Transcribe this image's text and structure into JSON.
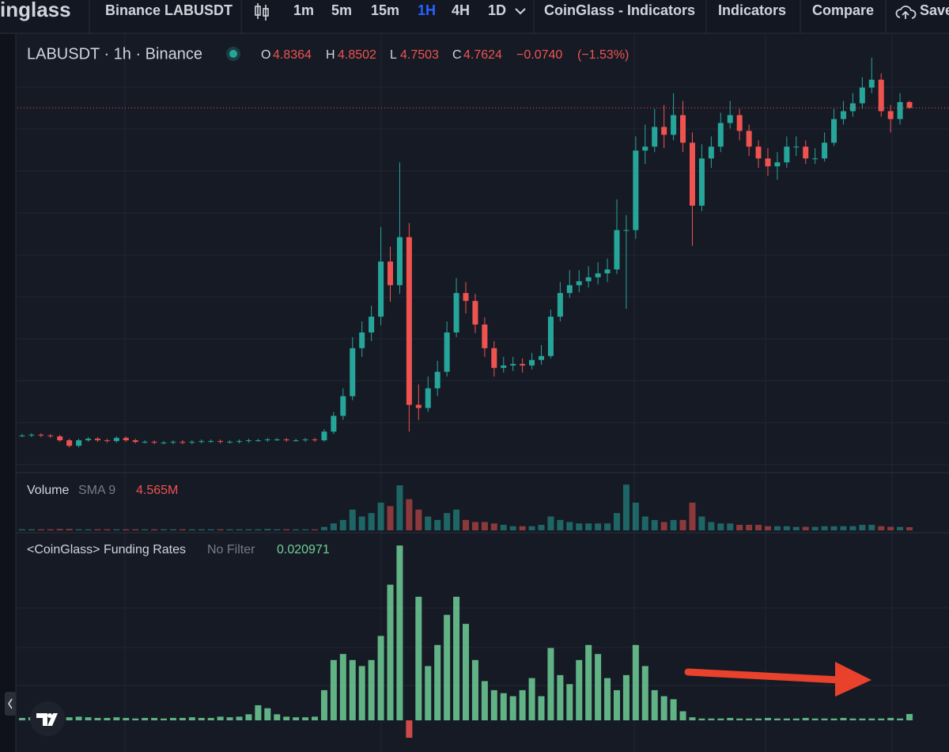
{
  "toolbar": {
    "brand": "inglass",
    "symbol": "Binance LABUSDT",
    "intervals": [
      "1m",
      "5m",
      "15m",
      "1H",
      "4H",
      "1D"
    ],
    "active_interval": "1H",
    "buttons": [
      "CoinGlass - Indicators",
      "Indicators",
      "Compare",
      "Save"
    ]
  },
  "chart_data": [
    {
      "type": "candlestick",
      "title": "LABUSDT · 1h · Binance",
      "ohlc_labels": [
        "O",
        "H",
        "L",
        "C"
      ],
      "change": {
        "value": -0.074,
        "label": "−0.0740"
      },
      "change_pct": {
        "value": -1.53,
        "label": "(−1.53%)"
      },
      "up_color": "#26a69a",
      "down_color": "#ef5350",
      "ylim": [
        0.15,
        5.68
      ],
      "last_price_line": true,
      "open": [
        0.6,
        0.6,
        0.61,
        0.6,
        0.59,
        0.54,
        0.47,
        0.54,
        0.56,
        0.54,
        0.53,
        0.57,
        0.54,
        0.52,
        0.52,
        0.51,
        0.51,
        0.52,
        0.51,
        0.52,
        0.53,
        0.53,
        0.52,
        0.52,
        0.53,
        0.54,
        0.54,
        0.55,
        0.55,
        0.54,
        0.54,
        0.55,
        0.54,
        0.65,
        0.85,
        1.1,
        1.71,
        1.91,
        2.11,
        2.81,
        2.51,
        3.12,
        0.99,
        0.95,
        1.2,
        1.41,
        1.91,
        2.41,
        2.31,
        2.01,
        1.71,
        1.46,
        1.49,
        1.51,
        1.49,
        1.56,
        1.61,
        2.11,
        2.41,
        2.51,
        2.56,
        2.61,
        2.66,
        2.71,
        3.21,
        3.21,
        4.22,
        4.27,
        4.52,
        4.42,
        4.67,
        4.32,
        3.52,
        4.12,
        4.27,
        4.57,
        4.67,
        4.47,
        4.27,
        4.12,
        4.02,
        4.07,
        4.27,
        4.27,
        4.12,
        4.12,
        4.32,
        4.62,
        4.72,
        4.82,
        5.02,
        5.12,
        4.72,
        4.62,
        4.8364
      ],
      "high": [
        0.62,
        0.63,
        0.63,
        0.62,
        0.61,
        0.56,
        0.56,
        0.58,
        0.58,
        0.56,
        0.59,
        0.59,
        0.56,
        0.54,
        0.54,
        0.53,
        0.54,
        0.54,
        0.54,
        0.55,
        0.55,
        0.55,
        0.54,
        0.55,
        0.56,
        0.56,
        0.57,
        0.57,
        0.57,
        0.56,
        0.57,
        0.57,
        0.68,
        0.9,
        1.2,
        1.85,
        2.05,
        2.25,
        3.25,
        3.0,
        4.07,
        3.3,
        1.25,
        1.35,
        1.55,
        2.05,
        2.6,
        2.55,
        2.4,
        2.1,
        1.8,
        1.6,
        1.6,
        1.58,
        1.65,
        1.75,
        2.2,
        2.55,
        2.7,
        2.7,
        2.75,
        2.8,
        2.85,
        3.6,
        3.4,
        4.4,
        4.55,
        4.75,
        4.8,
        4.95,
        4.85,
        4.45,
        4.3,
        4.4,
        4.7,
        4.85,
        4.75,
        4.55,
        4.35,
        4.25,
        4.2,
        4.4,
        4.4,
        4.35,
        4.25,
        4.45,
        4.75,
        4.85,
        4.95,
        5.15,
        5.4,
        5.2,
        4.8,
        4.95,
        4.8502
      ],
      "low": [
        0.58,
        0.58,
        0.58,
        0.57,
        0.52,
        0.45,
        0.45,
        0.52,
        0.52,
        0.51,
        0.51,
        0.52,
        0.5,
        0.5,
        0.49,
        0.49,
        0.49,
        0.49,
        0.49,
        0.5,
        0.51,
        0.5,
        0.5,
        0.5,
        0.51,
        0.52,
        0.52,
        0.53,
        0.52,
        0.52,
        0.52,
        0.52,
        0.52,
        0.62,
        0.8,
        1.05,
        1.6,
        1.8,
        2.0,
        2.3,
        2.4,
        0.65,
        0.8,
        0.9,
        1.1,
        1.35,
        1.85,
        2.15,
        1.9,
        1.6,
        1.35,
        1.4,
        1.42,
        1.4,
        1.44,
        1.5,
        1.58,
        2.05,
        2.35,
        2.42,
        2.48,
        2.52,
        2.55,
        2.65,
        2.21,
        3.1,
        4.05,
        4.2,
        4.25,
        4.35,
        4.2,
        3.01,
        3.45,
        4.0,
        4.2,
        4.5,
        4.35,
        4.15,
        4.0,
        3.9,
        3.85,
        4.0,
        4.15,
        4.05,
        4.05,
        4.08,
        4.28,
        4.55,
        4.65,
        4.75,
        4.95,
        4.65,
        4.45,
        4.55,
        4.7503
      ],
      "close": [
        0.6,
        0.61,
        0.6,
        0.59,
        0.54,
        0.47,
        0.54,
        0.56,
        0.54,
        0.53,
        0.57,
        0.54,
        0.52,
        0.52,
        0.51,
        0.51,
        0.52,
        0.51,
        0.52,
        0.53,
        0.53,
        0.52,
        0.52,
        0.53,
        0.54,
        0.54,
        0.55,
        0.55,
        0.54,
        0.54,
        0.55,
        0.54,
        0.65,
        0.85,
        1.1,
        1.71,
        1.91,
        2.11,
        2.81,
        2.51,
        3.12,
        0.99,
        0.95,
        1.2,
        1.41,
        1.91,
        2.41,
        2.31,
        2.01,
        1.71,
        1.46,
        1.49,
        1.51,
        1.49,
        1.56,
        1.61,
        2.11,
        2.41,
        2.51,
        2.56,
        2.61,
        2.66,
        2.71,
        3.21,
        3.21,
        4.22,
        4.27,
        4.52,
        4.42,
        4.67,
        4.32,
        3.52,
        4.12,
        4.27,
        4.57,
        4.67,
        4.47,
        4.27,
        4.12,
        4.02,
        4.07,
        4.27,
        4.27,
        4.12,
        4.12,
        4.32,
        4.62,
        4.72,
        4.82,
        5.02,
        5.12,
        4.72,
        4.62,
        4.8364,
        4.7624
      ]
    },
    {
      "type": "bar",
      "title": "Volume",
      "subtitle": "SMA 9",
      "last_value_label": "4.565M",
      "up_color": "#26a69a",
      "down_color": "#ef5350",
      "ylim": [
        0,
        80
      ],
      "values": [
        1.5,
        1.5,
        1.5,
        1.5,
        2,
        2,
        1.5,
        1.5,
        1.5,
        1.5,
        1.5,
        1.5,
        1.5,
        1.5,
        1.5,
        1.5,
        1.5,
        1.5,
        1.5,
        1.5,
        1.5,
        1.5,
        1.5,
        1.5,
        1.5,
        1.5,
        2,
        1.5,
        1.5,
        1.5,
        1.5,
        1.5,
        5,
        10,
        15,
        30,
        20,
        25,
        40,
        35,
        65,
        45,
        30,
        20,
        15,
        25,
        30,
        15,
        12,
        12,
        10,
        8,
        6,
        6,
        6,
        8,
        20,
        15,
        12,
        10,
        10,
        10,
        10,
        25,
        66,
        40,
        20,
        15,
        12,
        15,
        15,
        40,
        20,
        12,
        10,
        10,
        8,
        8,
        8,
        6,
        6,
        6,
        5,
        5,
        5,
        6,
        6,
        6,
        6,
        8,
        8,
        6,
        5,
        5,
        4.565
      ]
    },
    {
      "type": "bar",
      "title": "<CoinGlass> Funding Rates",
      "subtitle": "No Filter",
      "color": "#6fcf97",
      "negative_color": "#ef5350",
      "ylim": [
        -0.092,
        0.604
      ],
      "values": [
        0.008,
        0.01,
        0.008,
        0.006,
        0.008,
        0.01,
        0.012,
        0.01,
        0.008,
        0.008,
        0.01,
        0.008,
        0.006,
        0.008,
        0.008,
        0.006,
        0.008,
        0.008,
        0.01,
        0.008,
        0.008,
        0.012,
        0.01,
        0.012,
        0.02,
        0.05,
        0.04,
        0.02,
        0.012,
        0.01,
        0.01,
        0.012,
        0.1,
        0.2,
        0.22,
        0.2,
        0.18,
        0.2,
        0.28,
        0.45,
        0.58,
        -0.058,
        0.41,
        0.18,
        0.25,
        0.35,
        0.41,
        0.32,
        0.2,
        0.13,
        0.1,
        0.09,
        0.08,
        0.1,
        0.14,
        0.08,
        0.24,
        0.15,
        0.12,
        0.2,
        0.25,
        0.22,
        0.14,
        0.1,
        0.15,
        0.25,
        0.18,
        0.1,
        0.08,
        0.07,
        0.03,
        0.01,
        0.006,
        0.006,
        0.006,
        0.008,
        0.006,
        0.006,
        0.006,
        0.008,
        0.006,
        0.006,
        0.006,
        0.008,
        0.006,
        0.006,
        0.006,
        0.008,
        0.006,
        0.006,
        0.006,
        0.006,
        0.008,
        0.006,
        0.020971
      ]
    }
  ]
}
